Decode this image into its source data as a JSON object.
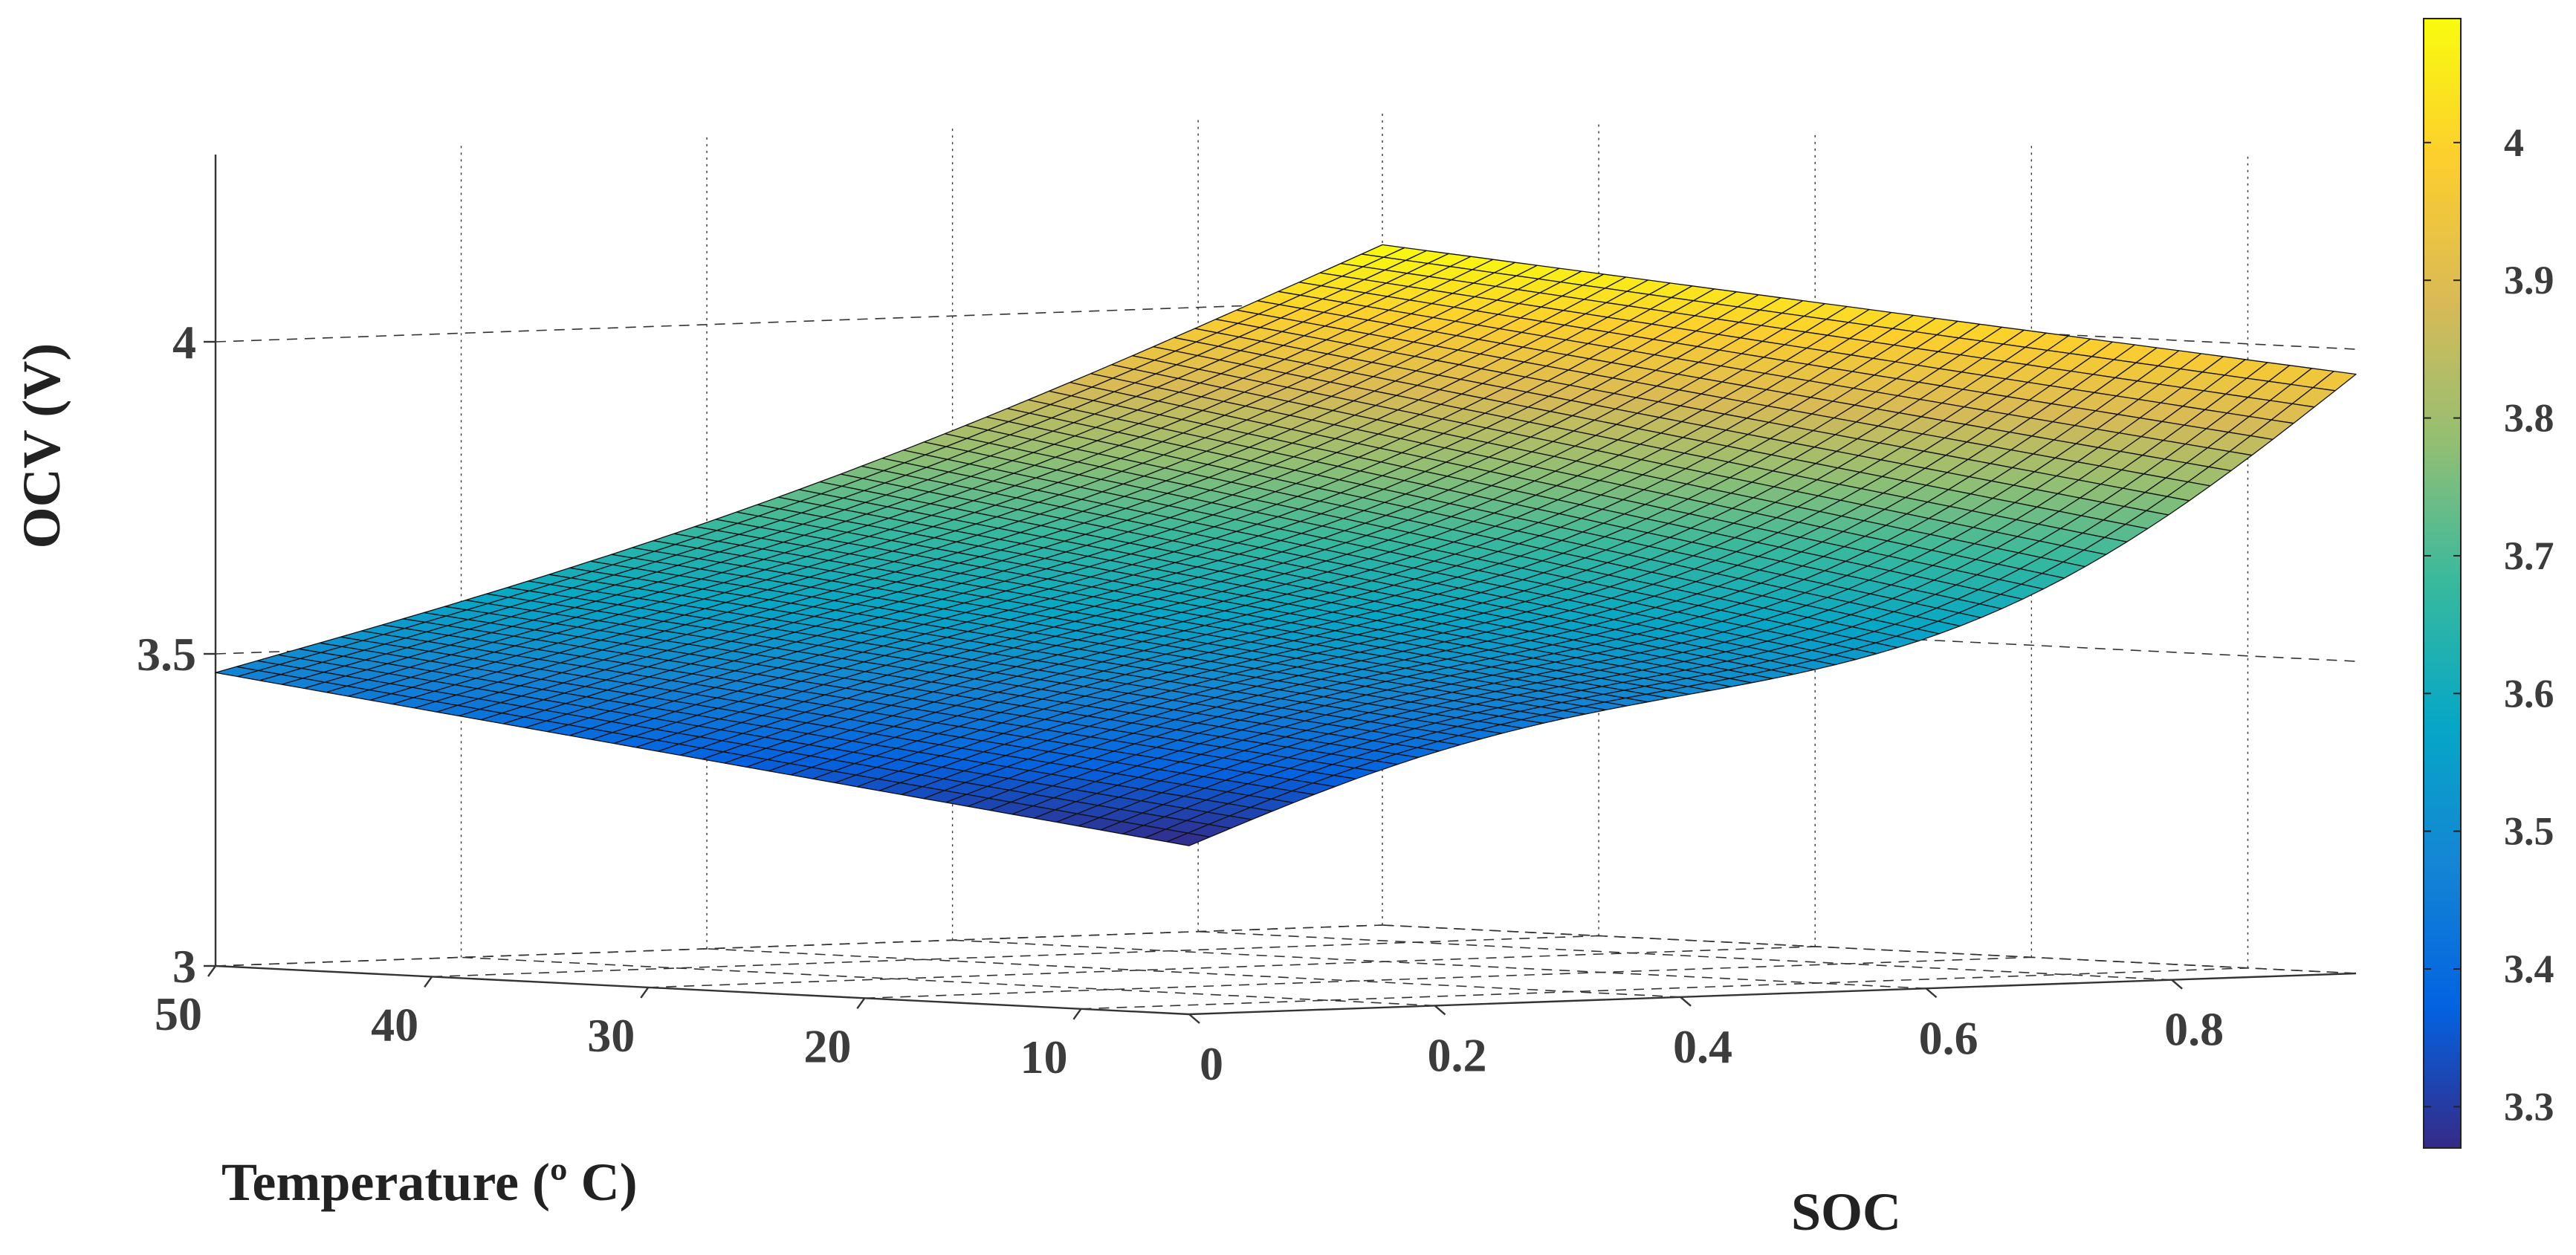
{
  "chart_data": {
    "type": "surface3d",
    "title": "",
    "xlabel": "SOC",
    "ylabel": "Temperature (º C)",
    "zlabel": "OCV (V)",
    "x_ticks": [
      "0",
      "0.2",
      "0.4",
      "0.6",
      "0.8"
    ],
    "x_tick_values": [
      0,
      0.2,
      0.4,
      0.6,
      0.8
    ],
    "y_ticks": [
      "10",
      "20",
      "30",
      "40",
      "50"
    ],
    "y_tick_values": [
      10,
      20,
      30,
      40,
      50
    ],
    "z_ticks": [
      "3",
      "3.5",
      "4"
    ],
    "z_tick_values": [
      3,
      3.5,
      4
    ],
    "xlim": [
      0,
      0.95
    ],
    "ylim": [
      5,
      50
    ],
    "zlim": [
      3,
      4.3
    ],
    "surface": {
      "soc_range": [
        0,
        0.95
      ],
      "temperature_range": [
        5,
        50
      ],
      "ocv_corners": {
        "soc0_temp50": 3.47,
        "soc0_temp5": 3.27,
        "soc0.95_temp50": 4.09,
        "soc0.95_temp5": 3.96
      }
    },
    "grid": true,
    "colorbar": {
      "ticks": [
        "3.3",
        "3.4",
        "3.5",
        "3.6",
        "3.7",
        "3.8",
        "3.9",
        "4"
      ],
      "tick_values": [
        3.3,
        3.4,
        3.5,
        3.6,
        3.7,
        3.8,
        3.9,
        4.0
      ],
      "range": [
        3.27,
        4.09
      ],
      "colormap": "parula",
      "placement": "right"
    }
  }
}
